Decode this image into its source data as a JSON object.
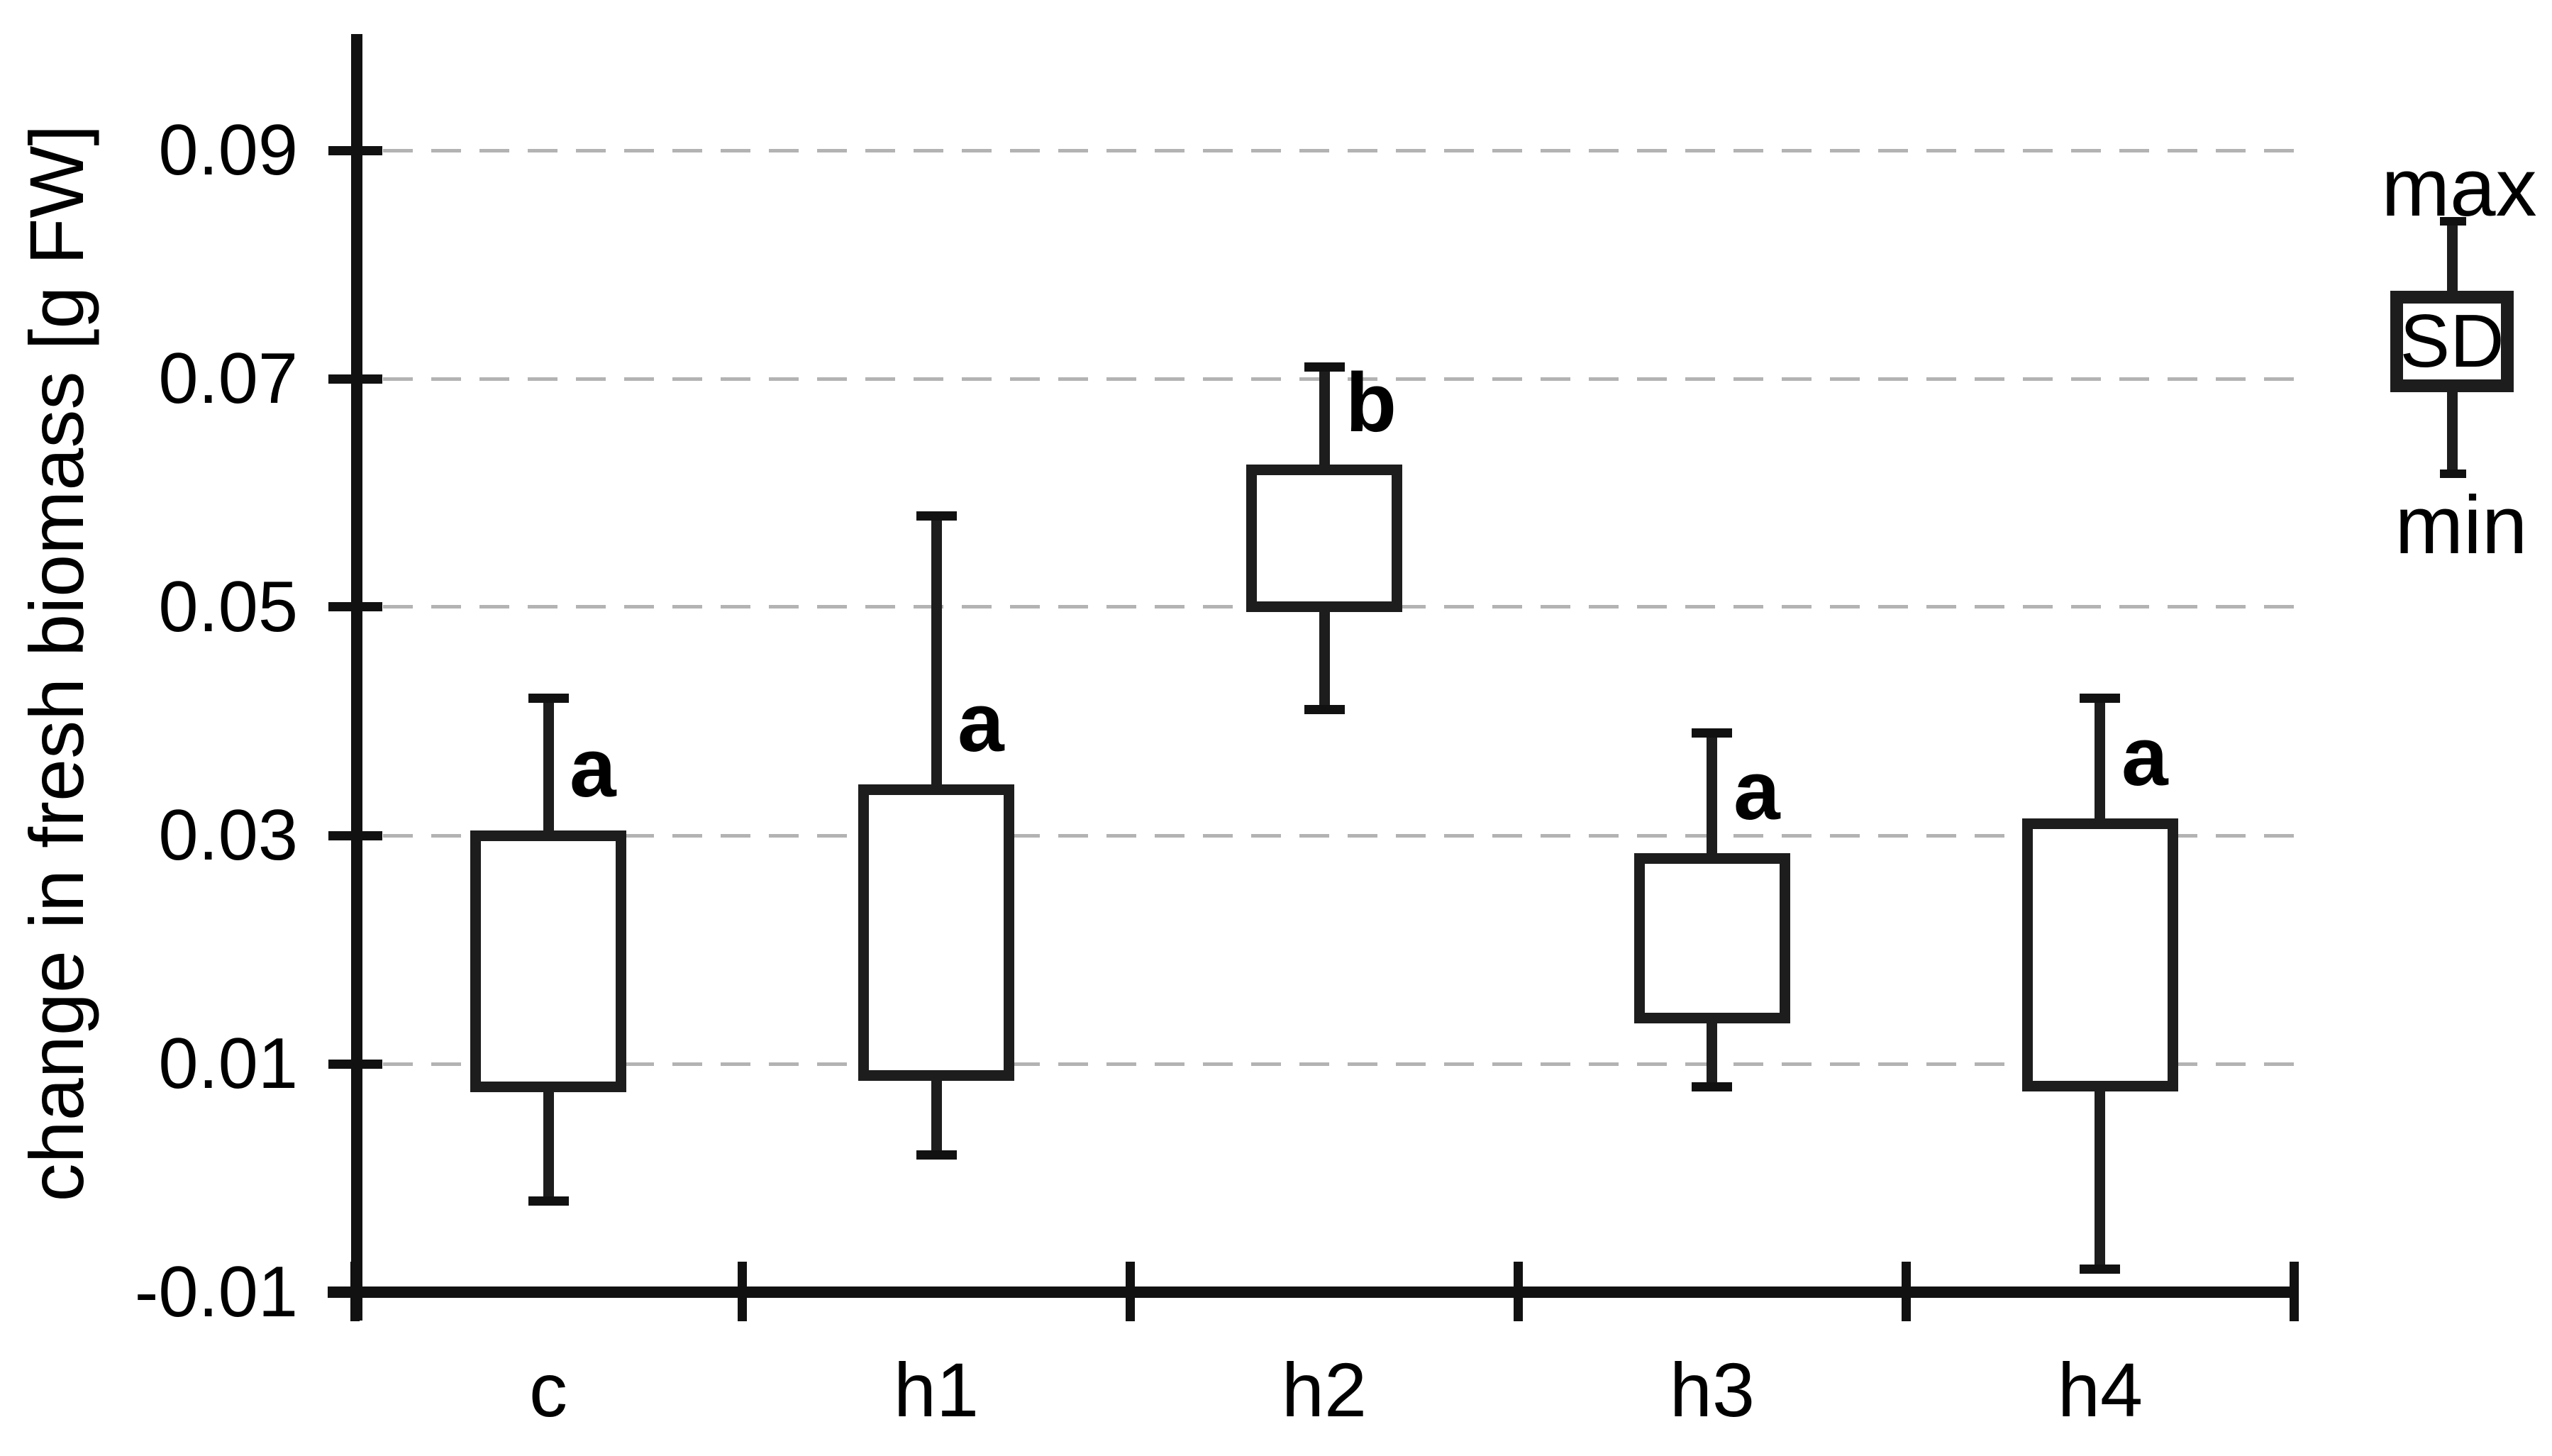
{
  "chart_data": {
    "type": "box",
    "title": "",
    "ylabel": "change in fresh biomass [g FW]",
    "xlabel": "",
    "categories": [
      "c",
      "h1",
      "h2",
      "h3",
      "h4"
    ],
    "series": [
      {
        "category": "c",
        "letter": "a",
        "max": 0.042,
        "sd_high": 0.03,
        "sd_low": 0.008,
        "min": -0.002
      },
      {
        "category": "h1",
        "letter": "a",
        "max": 0.058,
        "sd_high": 0.034,
        "sd_low": 0.009,
        "min": 0.002
      },
      {
        "category": "h2",
        "letter": "b",
        "max": 0.071,
        "sd_high": 0.062,
        "sd_low": 0.05,
        "min": 0.041
      },
      {
        "category": "h3",
        "letter": "a",
        "max": 0.039,
        "sd_high": 0.028,
        "sd_low": 0.014,
        "min": 0.008
      },
      {
        "category": "h4",
        "letter": "a",
        "max": 0.042,
        "sd_high": 0.031,
        "sd_low": 0.008,
        "min": -0.008
      }
    ],
    "box_semantics": {
      "top_whisker": "max",
      "box": "standard deviation",
      "bottom_whisker": "min"
    },
    "yticks": [
      -0.01,
      0.01,
      0.03,
      0.05,
      0.07,
      0.09
    ],
    "ytick_labels": [
      "-0.01",
      "0.01",
      "0.03",
      "0.05",
      "0.07",
      "0.09"
    ],
    "ylim": [
      -0.01,
      0.1
    ],
    "grid": {
      "show": true,
      "style": "dashed",
      "orientation": "horizontal",
      "at": [
        0.01,
        0.03,
        0.05,
        0.07,
        0.09
      ]
    },
    "legend": {
      "max_label": "max",
      "sd_label": "SD",
      "min_label": "min"
    },
    "colors": {
      "stroke": "#1d1d1d",
      "text": "#000000",
      "grid": "#b3b3b3",
      "background": "#ffffff"
    }
  }
}
